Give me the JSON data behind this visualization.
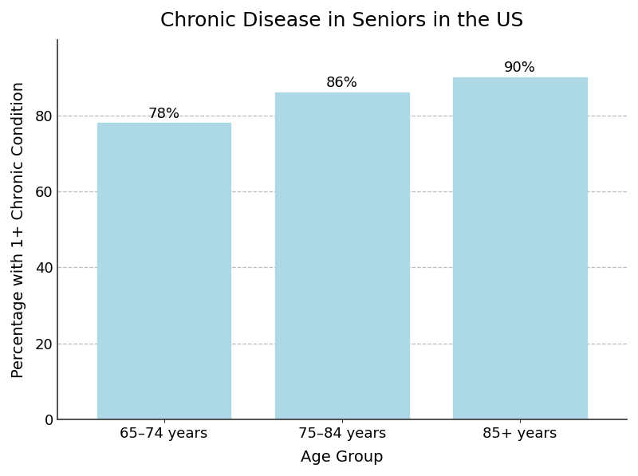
{
  "title": "Chronic Disease in Seniors in the US",
  "xlabel": "Age Group",
  "ylabel": "Percentage with 1+ Chronic Condition",
  "categories": [
    "65–74 years",
    "75–84 years",
    "85+ years"
  ],
  "values": [
    78,
    86,
    90
  ],
  "labels": [
    "78%",
    "86%",
    "90%"
  ],
  "bar_color": "#add8e6",
  "bar_edge_color": "#add8e6",
  "background_color": "#ffffff",
  "ylim": [
    0,
    100
  ],
  "yticks": [
    0,
    20,
    40,
    60,
    80
  ],
  "grid_color": "#bbbbbb",
  "grid_linestyle": "--",
  "title_fontsize": 18,
  "label_fontsize": 14,
  "tick_fontsize": 13,
  "annotation_fontsize": 13,
  "bar_width": 0.75
}
